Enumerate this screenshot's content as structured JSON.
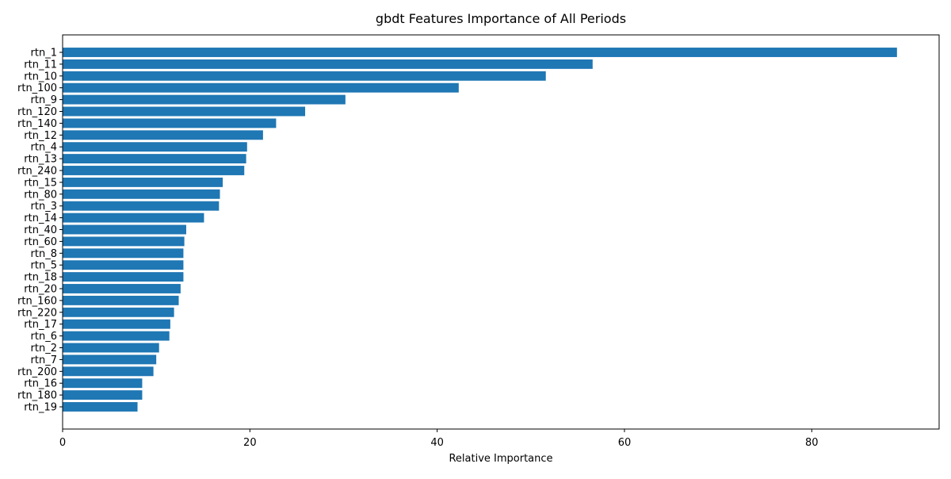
{
  "chart_data": {
    "type": "bar",
    "orientation": "horizontal",
    "title": "gbdt Features Importance of All Periods",
    "xlabel": "Relative Importance",
    "ylabel": "",
    "xlim": [
      0,
      93.6
    ],
    "xticks": [
      0,
      20,
      40,
      60,
      80
    ],
    "grid": false,
    "bar_color": "#1f77b4",
    "categories": [
      "rtn_1",
      "rtn_11",
      "rtn_10",
      "rtn_100",
      "rtn_9",
      "rtn_120",
      "rtn_140",
      "rtn_12",
      "rtn_4",
      "rtn_13",
      "rtn_240",
      "rtn_15",
      "rtn_80",
      "rtn_3",
      "rtn_14",
      "rtn_40",
      "rtn_60",
      "rtn_8",
      "rtn_5",
      "rtn_18",
      "rtn_20",
      "rtn_160",
      "rtn_220",
      "rtn_17",
      "rtn_6",
      "rtn_2",
      "rtn_7",
      "rtn_200",
      "rtn_16",
      "rtn_180",
      "rtn_19"
    ],
    "values": [
      89.1,
      56.6,
      51.6,
      42.3,
      30.2,
      25.9,
      22.8,
      21.4,
      19.7,
      19.6,
      19.4,
      17.1,
      16.8,
      16.7,
      15.1,
      13.2,
      13.0,
      12.9,
      12.9,
      12.9,
      12.6,
      12.4,
      11.9,
      11.5,
      11.4,
      10.3,
      10.0,
      9.7,
      8.5,
      8.5,
      8.0
    ]
  }
}
